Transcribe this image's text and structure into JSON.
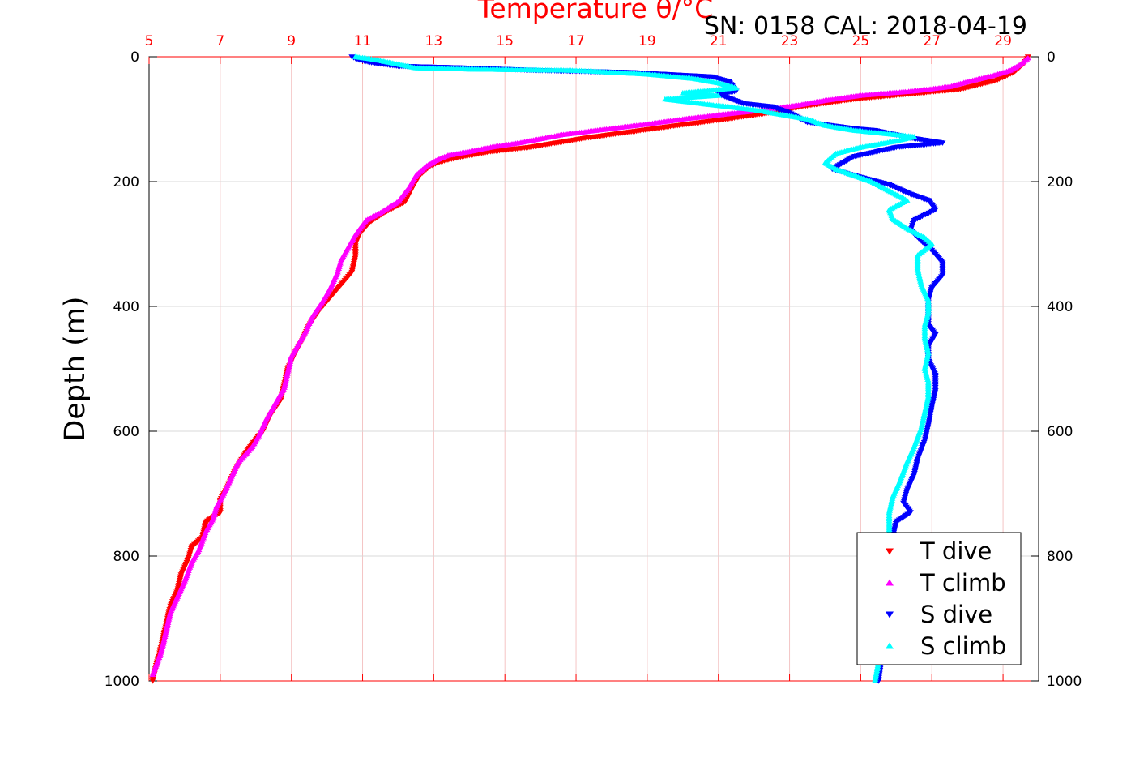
{
  "chart_data": {
    "type": "scatter",
    "title": "Temperature θ/°C",
    "subtitle": "SN: 0158  CAL: 2018-04-19",
    "ylabel": "Depth (m)",
    "xlabel": "",
    "xlim": [
      5,
      30
    ],
    "ylim": [
      0,
      1000
    ],
    "y_reversed": true,
    "x_axis_position": "top",
    "x_ticks": [
      5,
      7,
      9,
      11,
      13,
      15,
      17,
      19,
      21,
      23,
      25,
      27,
      29
    ],
    "x_tick_labels": [
      "5",
      "7",
      "9",
      "11",
      "13",
      "15",
      "17",
      "19",
      "21",
      "23",
      "25",
      "27",
      "29"
    ],
    "y_ticks": [
      0,
      200,
      400,
      600,
      800,
      1000
    ],
    "y_tick_labels": [
      "0",
      "200",
      "400",
      "600",
      "800",
      "1000"
    ],
    "grid": true,
    "legend_position": "bottom-right",
    "series": [
      {
        "name": "T dive",
        "color": "#ff0000",
        "marker": "triangle-down",
        "points": [
          [
            29.7,
            0
          ],
          [
            29.6,
            10
          ],
          [
            29.3,
            25
          ],
          [
            28.8,
            38
          ],
          [
            27.8,
            52
          ],
          [
            26.3,
            60
          ],
          [
            24.8,
            68
          ],
          [
            23.3,
            80
          ],
          [
            22.4,
            90
          ],
          [
            21.2,
            100
          ],
          [
            19.6,
            112
          ],
          [
            17.3,
            130
          ],
          [
            15.7,
            145
          ],
          [
            14.6,
            152
          ],
          [
            13.8,
            160
          ],
          [
            13.2,
            168
          ],
          [
            12.9,
            175
          ],
          [
            12.6,
            190
          ],
          [
            12.4,
            210
          ],
          [
            12.2,
            232
          ],
          [
            11.6,
            250
          ],
          [
            11.2,
            265
          ],
          [
            10.9,
            285
          ],
          [
            10.8,
            300
          ],
          [
            10.8,
            320
          ],
          [
            10.7,
            345
          ],
          [
            10.4,
            365
          ],
          [
            10.1,
            385
          ],
          [
            9.8,
            405
          ],
          [
            9.5,
            430
          ],
          [
            9.3,
            455
          ],
          [
            9.1,
            475
          ],
          [
            8.9,
            500
          ],
          [
            8.8,
            525
          ],
          [
            8.7,
            550
          ],
          [
            8.4,
            575
          ],
          [
            8.2,
            600
          ],
          [
            7.9,
            620
          ],
          [
            7.6,
            645
          ],
          [
            7.4,
            665
          ],
          [
            7.2,
            690
          ],
          [
            7.0,
            710
          ],
          [
            7.0,
            730
          ],
          [
            6.6,
            745
          ],
          [
            6.5,
            770
          ],
          [
            6.2,
            785
          ],
          [
            6.1,
            805
          ],
          [
            5.9,
            830
          ],
          [
            5.8,
            855
          ],
          [
            5.6,
            880
          ],
          [
            5.5,
            905
          ],
          [
            5.4,
            930
          ],
          [
            5.3,
            955
          ],
          [
            5.2,
            975
          ],
          [
            5.1,
            1000
          ]
        ]
      },
      {
        "name": "T climb",
        "color": "#ff00ff",
        "marker": "triangle-up",
        "points": [
          [
            29.7,
            2
          ],
          [
            29.5,
            12
          ],
          [
            29.2,
            22
          ],
          [
            28.6,
            32
          ],
          [
            28.0,
            40
          ],
          [
            27.5,
            48
          ],
          [
            26.5,
            55
          ],
          [
            25.0,
            62
          ],
          [
            24.0,
            70
          ],
          [
            23.2,
            78
          ],
          [
            22.3,
            85
          ],
          [
            21.2,
            92
          ],
          [
            20.0,
            100
          ],
          [
            19.0,
            108
          ],
          [
            18.0,
            115
          ],
          [
            16.6,
            125
          ],
          [
            15.4,
            138
          ],
          [
            14.6,
            145
          ],
          [
            14.0,
            152
          ],
          [
            13.4,
            158
          ],
          [
            13.1,
            165
          ],
          [
            12.8,
            175
          ],
          [
            12.5,
            190
          ],
          [
            12.3,
            210
          ],
          [
            12.0,
            232
          ],
          [
            11.5,
            250
          ],
          [
            11.1,
            262
          ],
          [
            10.8,
            285
          ],
          [
            10.6,
            305
          ],
          [
            10.4,
            325
          ],
          [
            10.3,
            345
          ],
          [
            10.1,
            370
          ],
          [
            9.9,
            390
          ],
          [
            9.6,
            415
          ],
          [
            9.4,
            440
          ],
          [
            9.2,
            460
          ],
          [
            9.0,
            480
          ],
          [
            8.9,
            505
          ],
          [
            8.8,
            530
          ],
          [
            8.6,
            550
          ],
          [
            8.3,
            580
          ],
          [
            8.1,
            605
          ],
          [
            7.9,
            625
          ],
          [
            7.5,
            650
          ],
          [
            7.3,
            675
          ],
          [
            7.1,
            700
          ],
          [
            6.9,
            720
          ],
          [
            6.8,
            740
          ],
          [
            6.6,
            760
          ],
          [
            6.4,
            790
          ],
          [
            6.2,
            810
          ],
          [
            6.0,
            840
          ],
          [
            5.8,
            865
          ],
          [
            5.6,
            890
          ],
          [
            5.5,
            915
          ],
          [
            5.4,
            940
          ],
          [
            5.3,
            960
          ],
          [
            5.1,
            990
          ]
        ]
      },
      {
        "name": "S dive",
        "color": "#0000ff",
        "marker": "triangle-down",
        "points": [
          [
            10.7,
            0
          ],
          [
            10.9,
            5
          ],
          [
            11.3,
            10
          ],
          [
            12.0,
            15
          ],
          [
            14.0,
            18
          ],
          [
            16.0,
            22
          ],
          [
            18.5,
            25
          ],
          [
            20.8,
            32
          ],
          [
            21.3,
            40
          ],
          [
            21.5,
            55
          ],
          [
            21.0,
            60
          ],
          [
            21.7,
            75
          ],
          [
            22.5,
            80
          ],
          [
            23.0,
            90
          ],
          [
            23.5,
            105
          ],
          [
            24.8,
            115
          ],
          [
            25.4,
            118
          ],
          [
            26.4,
            130
          ],
          [
            27.3,
            138
          ],
          [
            26.0,
            145
          ],
          [
            24.8,
            160
          ],
          [
            24.2,
            180
          ],
          [
            24.8,
            190
          ],
          [
            25.8,
            205
          ],
          [
            26.4,
            220
          ],
          [
            26.9,
            230
          ],
          [
            27.1,
            245
          ],
          [
            26.5,
            262
          ],
          [
            26.4,
            278
          ],
          [
            26.7,
            295
          ],
          [
            27.0,
            310
          ],
          [
            27.3,
            330
          ],
          [
            27.3,
            350
          ],
          [
            27.0,
            370
          ],
          [
            26.9,
            390
          ],
          [
            26.9,
            410
          ],
          [
            26.9,
            430
          ],
          [
            27.1,
            445
          ],
          [
            26.9,
            465
          ],
          [
            26.9,
            485
          ],
          [
            27.1,
            510
          ],
          [
            27.1,
            535
          ],
          [
            27.0,
            560
          ],
          [
            26.9,
            590
          ],
          [
            26.8,
            615
          ],
          [
            26.6,
            645
          ],
          [
            26.5,
            670
          ],
          [
            26.3,
            695
          ],
          [
            26.2,
            715
          ],
          [
            26.4,
            730
          ],
          [
            26.0,
            745
          ],
          [
            25.9,
            770
          ],
          [
            25.8,
            800
          ],
          [
            25.8,
            830
          ],
          [
            25.8,
            860
          ],
          [
            25.7,
            890
          ],
          [
            25.6,
            930
          ],
          [
            25.6,
            960
          ],
          [
            25.5,
            1000
          ]
        ]
      },
      {
        "name": "S climb",
        "color": "#00ffff",
        "marker": "triangle-up",
        "points": [
          [
            10.8,
            0
          ],
          [
            11.4,
            5
          ],
          [
            12.0,
            12
          ],
          [
            12.5,
            18
          ],
          [
            14.0,
            20
          ],
          [
            17.0,
            22
          ],
          [
            19.0,
            28
          ],
          [
            20.3,
            35
          ],
          [
            21.0,
            42
          ],
          [
            21.5,
            50
          ],
          [
            20.0,
            58
          ],
          [
            21.0,
            62
          ],
          [
            19.5,
            68
          ],
          [
            20.5,
            75
          ],
          [
            22.0,
            85
          ],
          [
            23.5,
            100
          ],
          [
            24.0,
            110
          ],
          [
            24.8,
            118
          ],
          [
            26.0,
            125
          ],
          [
            26.5,
            128
          ],
          [
            26.0,
            135
          ],
          [
            25.0,
            145
          ],
          [
            24.3,
            155
          ],
          [
            24.0,
            170
          ],
          [
            24.3,
            180
          ],
          [
            24.8,
            190
          ],
          [
            25.3,
            200
          ],
          [
            25.8,
            215
          ],
          [
            26.3,
            230
          ],
          [
            25.8,
            245
          ],
          [
            25.9,
            260
          ],
          [
            26.3,
            275
          ],
          [
            26.8,
            290
          ],
          [
            27.0,
            300
          ],
          [
            26.6,
            318
          ],
          [
            26.6,
            340
          ],
          [
            26.7,
            365
          ],
          [
            26.9,
            390
          ],
          [
            26.9,
            410
          ],
          [
            26.8,
            430
          ],
          [
            26.8,
            450
          ],
          [
            26.9,
            475
          ],
          [
            26.8,
            500
          ],
          [
            26.9,
            520
          ],
          [
            26.9,
            545
          ],
          [
            26.8,
            570
          ],
          [
            26.7,
            595
          ],
          [
            26.5,
            625
          ],
          [
            26.3,
            650
          ],
          [
            26.1,
            680
          ],
          [
            25.9,
            705
          ],
          [
            25.8,
            730
          ],
          [
            25.8,
            760
          ],
          [
            25.8,
            790
          ],
          [
            25.7,
            820
          ],
          [
            25.7,
            850
          ],
          [
            25.6,
            880
          ],
          [
            25.6,
            910
          ],
          [
            25.5,
            940
          ],
          [
            25.5,
            970
          ],
          [
            25.4,
            1000
          ]
        ]
      }
    ]
  }
}
